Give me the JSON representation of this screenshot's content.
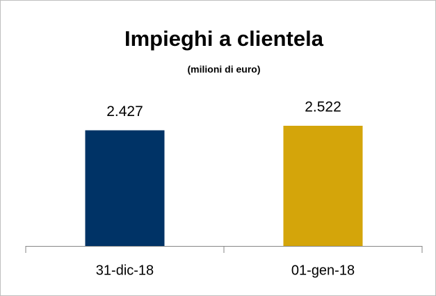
{
  "chart_data": {
    "type": "bar",
    "title": "Impieghi a clientela",
    "subtitle": "(milioni di euro)",
    "categories": [
      "31-dic-18",
      "01-gen-18"
    ],
    "values": [
      2427,
      2522
    ],
    "value_labels": [
      "2.427",
      "2.522"
    ],
    "colors": [
      "#003366",
      "#d4a50a"
    ],
    "grid": false
  }
}
